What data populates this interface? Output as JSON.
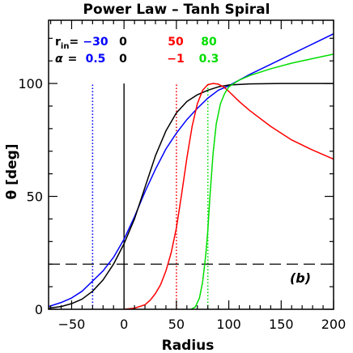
{
  "chart_data": {
    "type": "line",
    "title": "Power Law – Tanh Spiral",
    "xlabel": "Radius",
    "ylabel": "θ [deg]",
    "xlim": [
      -72,
      200
    ],
    "ylim": [
      0,
      128
    ],
    "xticks": [
      -50,
      0,
      50,
      100,
      150,
      200
    ],
    "yticks": [
      0,
      50,
      100
    ],
    "panel_label": "(b)",
    "horizontal_line": {
      "y": 20,
      "style": "dashed"
    },
    "legend": {
      "r_label": "r",
      "r_sub": "in",
      "r_eq": "=",
      "alpha_label": "α",
      "alpha_eq": "="
    },
    "series": [
      {
        "r_in": "−30",
        "alpha": "0.5",
        "color": "#0000ff",
        "x": [
          -72,
          -60,
          -50,
          -40,
          -30,
          -20,
          -10,
          0,
          10,
          20,
          30,
          40,
          50,
          60,
          70,
          80,
          90,
          100,
          120,
          140,
          160,
          180,
          200
        ],
        "y": [
          1.2,
          3,
          5,
          8,
          12.5,
          17,
          23,
          31,
          41,
          52,
          62,
          71,
          78,
          84,
          89,
          93.5,
          97,
          99,
          104,
          108.5,
          113,
          117.5,
          122
        ]
      },
      {
        "r_in": "0",
        "alpha": "0",
        "color": "#000000",
        "x": [
          -72,
          -60,
          -50,
          -40,
          -30,
          -20,
          -10,
          0,
          10,
          20,
          30,
          40,
          50,
          60,
          70,
          80,
          90,
          100,
          120,
          150,
          200
        ],
        "y": [
          0.5,
          1.2,
          2.5,
          4.5,
          8,
          13,
          20,
          29,
          40,
          54,
          68,
          79,
          87,
          92,
          95,
          97,
          98.5,
          99.3,
          99.8,
          100,
          100
        ]
      },
      {
        "r_in": "50",
        "alpha": "−1",
        "color": "#ff0000",
        "x": [
          0,
          10,
          20,
          25,
          30,
          35,
          40,
          45,
          50,
          55,
          60,
          65,
          70,
          75,
          80,
          85,
          90,
          95,
          100,
          110,
          120,
          140,
          160,
          180,
          200
        ],
        "y": [
          0,
          0.5,
          2,
          4,
          7,
          11,
          17,
          25,
          36,
          51,
          67,
          81,
          91,
          97,
          99.5,
          100,
          99.7,
          98.5,
          96.5,
          92,
          88,
          81,
          75,
          70.5,
          66.5
        ]
      },
      {
        "r_in": "80",
        "alpha": "0.3",
        "color": "#00dd00",
        "x": [
          64,
          68,
          72,
          75,
          78,
          80,
          82,
          85,
          88,
          92,
          96,
          100,
          110,
          120,
          140,
          160,
          180,
          200
        ],
        "y": [
          0,
          1,
          5,
          12,
          24,
          35,
          50,
          69,
          82,
          91,
          95.5,
          98.5,
          101.5,
          103.5,
          106.5,
          109,
          111,
          113
        ]
      }
    ],
    "vertical_markers": [
      {
        "x": -30,
        "color": "#0000ff",
        "style": "dotted"
      },
      {
        "x": 0,
        "color": "#000000",
        "style": "solid"
      },
      {
        "x": 50,
        "color": "#ff0000",
        "style": "dotted"
      },
      {
        "x": 80,
        "color": "#00dd00",
        "style": "dotted"
      }
    ]
  }
}
